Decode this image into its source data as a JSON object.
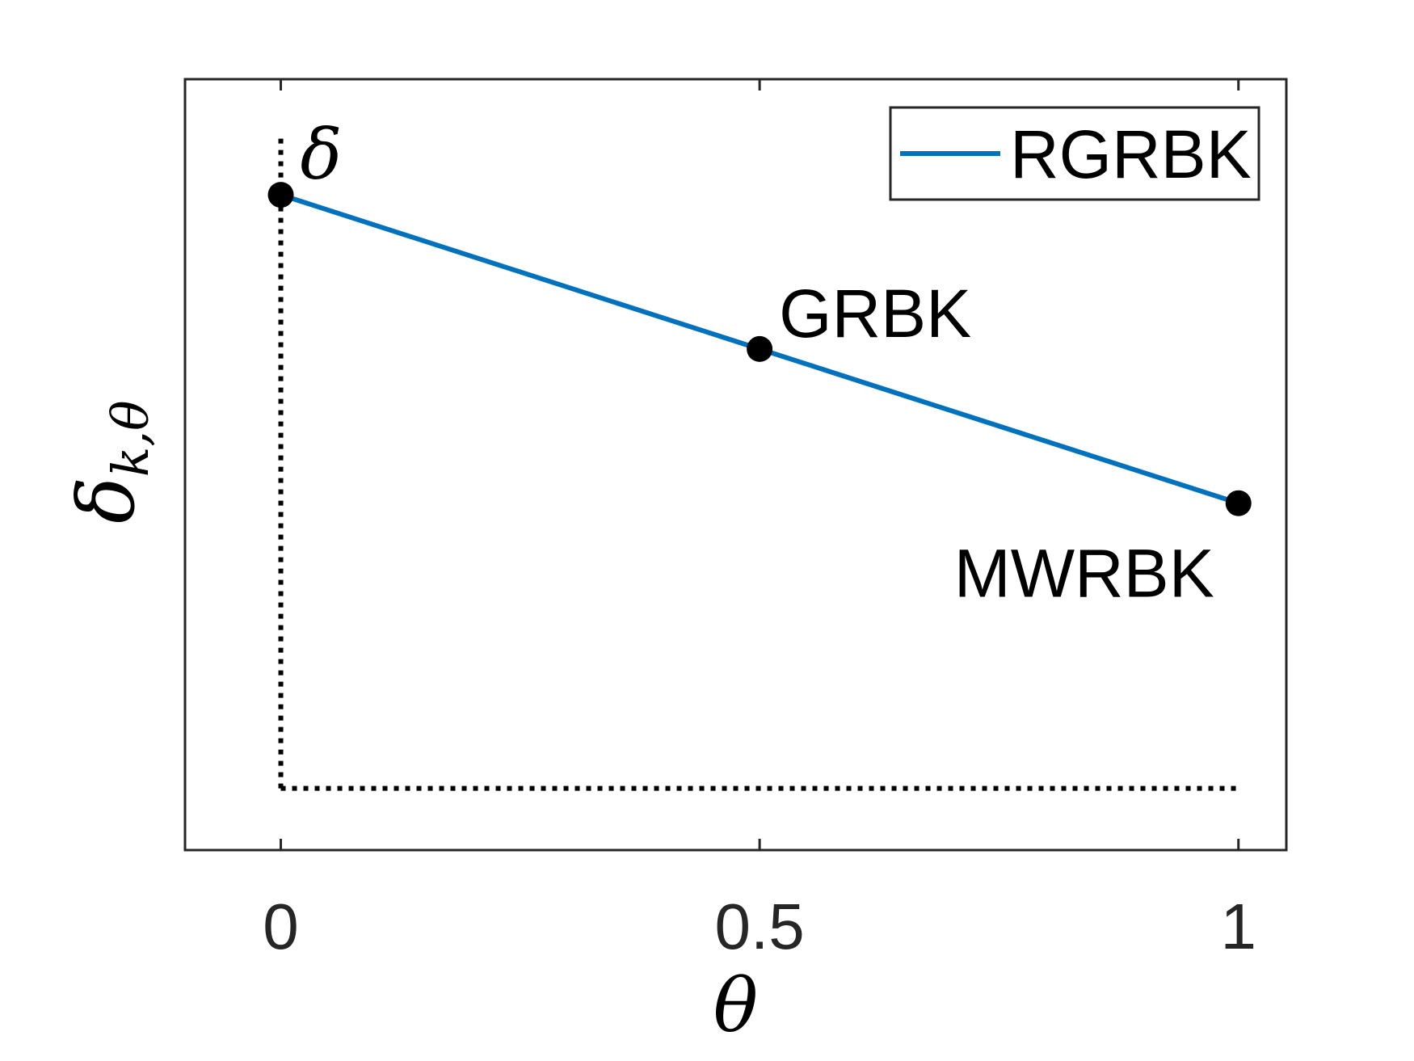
{
  "chart_data": {
    "type": "line",
    "xlabel": "θ",
    "ylabel": "δ",
    "ylabel_sub": "k,θ",
    "xlim": [
      -0.1,
      1.05
    ],
    "xticks": [
      0,
      0.5,
      1
    ],
    "xtick_labels": [
      "0",
      "0.5",
      "1"
    ],
    "ylim": [
      0,
      1
    ],
    "yticks": [],
    "grid": false,
    "legend_position": "top-right",
    "series": [
      {
        "name": "RGRBK",
        "color": "#0072BD",
        "x": [
          0,
          0.5,
          1
        ],
        "y": [
          0.85,
          0.65,
          0.45
        ]
      }
    ],
    "points": [
      {
        "x": 0,
        "y": 0.85,
        "label": "δ"
      },
      {
        "x": 0.5,
        "y": 0.65,
        "label": "GRBK"
      },
      {
        "x": 1,
        "y": 0.45,
        "label": "MWRBK"
      }
    ],
    "reference_lines": [
      {
        "style": "dotted",
        "x": [
          0,
          0
        ],
        "y": [
          0.08,
          0.93
        ]
      },
      {
        "style": "dotted",
        "x": [
          0,
          1
        ],
        "y": [
          0.08,
          0.08
        ]
      }
    ]
  }
}
